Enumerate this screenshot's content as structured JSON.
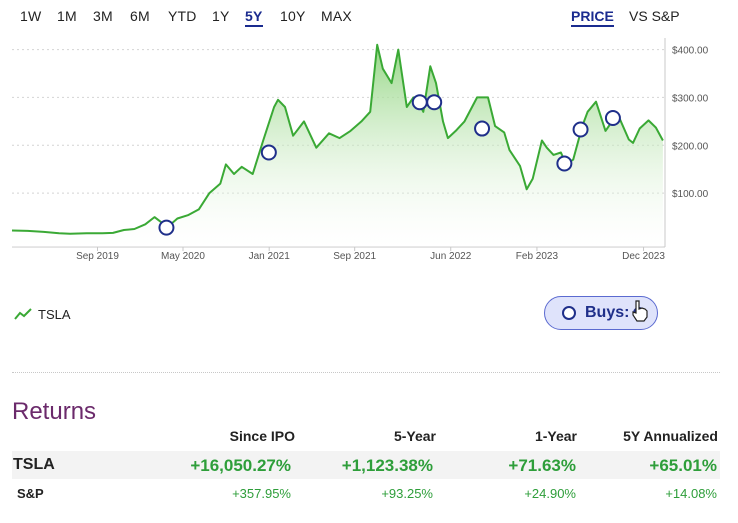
{
  "range_tabs": [
    "1W",
    "1M",
    "3M",
    "6M",
    "YTD",
    "1Y",
    "5Y",
    "10Y",
    "MAX"
  ],
  "active_range": "5Y",
  "mode_tabs": {
    "price": "PRICE",
    "vs_sp": "VS S&P"
  },
  "active_mode": "PRICE",
  "legend": {
    "label": "TSLA"
  },
  "buys_button": {
    "label": "Buys:"
  },
  "returns": {
    "title": "Returns",
    "columns": [
      "Since IPO",
      "5-Year",
      "1-Year",
      "5Y Annualized"
    ],
    "rows": [
      {
        "name": "TSLA",
        "values": [
          "+16,050.27%",
          "+1,123.38%",
          "+71.63%",
          "+65.01%"
        ]
      },
      {
        "name": "S&P",
        "values": [
          "+357.95%",
          "+93.25%",
          "+24.90%",
          "+14.08%"
        ]
      }
    ]
  },
  "watermark": "",
  "colors": {
    "line": "#3aa935",
    "fill_top": "#8fd47e",
    "accent": "#1a2b8f",
    "buy_marker": "#1f2f8a",
    "returns_title": "#6b2a6b",
    "positive": "#2e9e3a"
  },
  "chart_data": {
    "type": "area",
    "title": "",
    "xlabel": "",
    "ylabel": "",
    "ylim": [
      0,
      420
    ],
    "y_ticks": [
      "$100.00",
      "$200.00",
      "$300.00",
      "$400.00"
    ],
    "y_tick_values": [
      100,
      200,
      300,
      400
    ],
    "x_ticks": [
      "Sep 2019",
      "May 2020",
      "Jan 2021",
      "Sep 2021",
      "Jun 2022",
      "Feb 2023",
      "Dec 2023"
    ],
    "x_tick_dates": [
      "2019-09-01",
      "2020-05-01",
      "2021-01-01",
      "2021-09-01",
      "2022-06-01",
      "2023-02-01",
      "2023-12-01"
    ],
    "x_range": [
      "2019-01-01",
      "2024-01-31"
    ],
    "series": [
      {
        "name": "TSLA",
        "points": [
          [
            "2019-01-01",
            22
          ],
          [
            "2019-02-15",
            21
          ],
          [
            "2019-04-01",
            19
          ],
          [
            "2019-05-15",
            16
          ],
          [
            "2019-06-15",
            15
          ],
          [
            "2019-08-01",
            16
          ],
          [
            "2019-09-15",
            16
          ],
          [
            "2019-10-15",
            17
          ],
          [
            "2019-11-15",
            23
          ],
          [
            "2019-12-15",
            25
          ],
          [
            "2020-01-15",
            35
          ],
          [
            "2020-02-10",
            50
          ],
          [
            "2020-03-18",
            29
          ],
          [
            "2020-04-15",
            47
          ],
          [
            "2020-05-15",
            54
          ],
          [
            "2020-06-15",
            66
          ],
          [
            "2020-07-15",
            100
          ],
          [
            "2020-08-15",
            120
          ],
          [
            "2020-08-31",
            160
          ],
          [
            "2020-09-23",
            140
          ],
          [
            "2020-10-15",
            155
          ],
          [
            "2020-11-15",
            140
          ],
          [
            "2020-12-15",
            210
          ],
          [
            "2021-01-15",
            280
          ],
          [
            "2021-01-26",
            295
          ],
          [
            "2021-02-15",
            280
          ],
          [
            "2021-03-10",
            220
          ],
          [
            "2021-04-10",
            250
          ],
          [
            "2021-05-15",
            195
          ],
          [
            "2021-06-20",
            225
          ],
          [
            "2021-07-20",
            215
          ],
          [
            "2021-08-20",
            230
          ],
          [
            "2021-09-20",
            250
          ],
          [
            "2021-10-15",
            270
          ],
          [
            "2021-10-25",
            340
          ],
          [
            "2021-11-04",
            410
          ],
          [
            "2021-11-20",
            360
          ],
          [
            "2021-12-15",
            330
          ],
          [
            "2022-01-03",
            400
          ],
          [
            "2022-01-27",
            280
          ],
          [
            "2022-02-15",
            300
          ],
          [
            "2022-03-01",
            290
          ],
          [
            "2022-03-15",
            270
          ],
          [
            "2022-04-04",
            365
          ],
          [
            "2022-04-20",
            330
          ],
          [
            "2022-05-10",
            250
          ],
          [
            "2022-05-24",
            215
          ],
          [
            "2022-06-15",
            230
          ],
          [
            "2022-07-10",
            250
          ],
          [
            "2022-08-15",
            300
          ],
          [
            "2022-09-15",
            300
          ],
          [
            "2022-10-05",
            240
          ],
          [
            "2022-10-31",
            227
          ],
          [
            "2022-11-15",
            190
          ],
          [
            "2022-12-15",
            157
          ],
          [
            "2023-01-03",
            108
          ],
          [
            "2023-01-20",
            130
          ],
          [
            "2023-02-15",
            210
          ],
          [
            "2023-03-01",
            195
          ],
          [
            "2023-03-20",
            180
          ],
          [
            "2023-04-10",
            185
          ],
          [
            "2023-04-25",
            160
          ],
          [
            "2023-05-15",
            170
          ],
          [
            "2023-06-10",
            240
          ],
          [
            "2023-06-25",
            270
          ],
          [
            "2023-07-19",
            291
          ],
          [
            "2023-08-15",
            230
          ],
          [
            "2023-09-18",
            266
          ],
          [
            "2023-10-20",
            212
          ],
          [
            "2023-11-01",
            205
          ],
          [
            "2023-11-20",
            235
          ],
          [
            "2023-12-15",
            252
          ],
          [
            "2024-01-05",
            237
          ],
          [
            "2024-01-25",
            210
          ]
        ]
      }
    ],
    "buy_markers": [
      [
        "2020-03-15",
        28
      ],
      [
        "2020-12-31",
        185
      ],
      [
        "2022-03-05",
        290
      ],
      [
        "2022-04-15",
        290
      ],
      [
        "2022-08-29",
        235
      ],
      [
        "2023-04-20",
        162
      ],
      [
        "2023-06-05",
        233
      ],
      [
        "2023-09-05",
        257
      ]
    ]
  }
}
